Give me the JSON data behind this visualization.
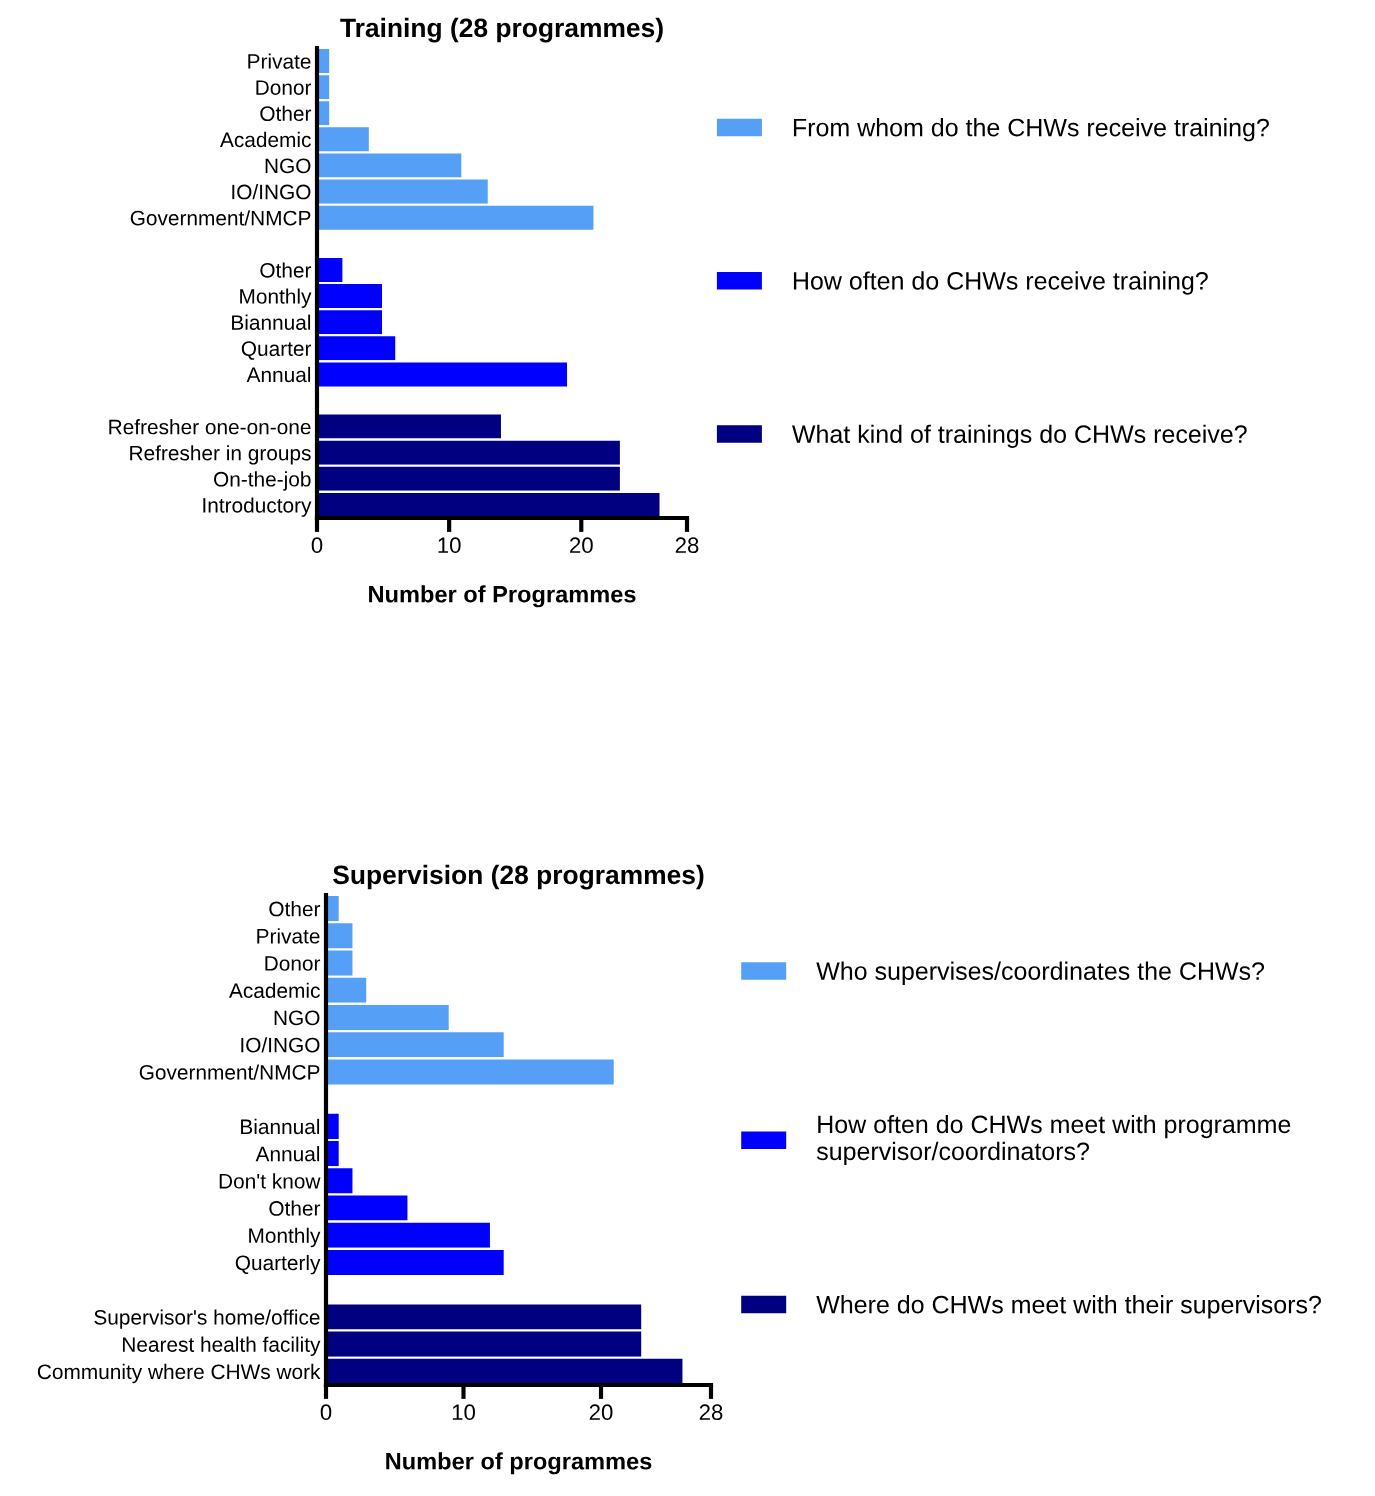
{
  "chart_data": [
    {
      "type": "bar",
      "orientation": "horizontal",
      "title": "Training (28 programmes)",
      "xlabel": "Number of Programmes",
      "categories": [
        "Private",
        "Donor",
        "Other",
        "Academic",
        "NGO",
        "IO/INGO",
        "Government/NMCP",
        null,
        "Other",
        "Monthly",
        "Biannual",
        "Quarter",
        "Annual",
        null,
        "Refresher one-on-one",
        "Refresher in groups",
        "On-the-job",
        "Introductory"
      ],
      "series": [
        {
          "name": "From whom do the CHWs receive training?",
          "color": "#559ff7",
          "values": [
            1,
            1,
            1,
            4,
            11,
            13,
            21,
            null,
            null,
            null,
            null,
            null,
            null,
            null,
            null,
            null,
            null,
            null
          ]
        },
        {
          "name": "How often do CHWs receive training?",
          "color": "#0000ff",
          "values": [
            null,
            null,
            null,
            null,
            null,
            null,
            null,
            null,
            2,
            5,
            5,
            6,
            19,
            null,
            null,
            null,
            null,
            null
          ]
        },
        {
          "name": "What kind of trainings do CHWs receive?",
          "color": "#000080",
          "values": [
            null,
            null,
            null,
            null,
            null,
            null,
            null,
            null,
            null,
            null,
            null,
            null,
            null,
            null,
            14,
            23,
            23,
            26
          ]
        }
      ],
      "xlim": [
        0,
        28
      ],
      "xticks": [
        0,
        10,
        20,
        28
      ],
      "grid": false,
      "legend": "right"
    },
    {
      "type": "bar",
      "orientation": "horizontal",
      "title": "Supervision (28 programmes)",
      "xlabel": "Number of programmes",
      "categories": [
        "Other",
        "Private",
        "Donor",
        "Academic",
        "NGO",
        "IO/INGO",
        "Government/NMCP",
        null,
        "Biannual",
        "Annual",
        "Don't know",
        "Other",
        "Monthly",
        "Quarterly",
        null,
        "Supervisor's home/office",
        "Nearest health facility",
        "Community where CHWs work"
      ],
      "series": [
        {
          "name": "Who supervises/coordinates the CHWs?",
          "color": "#559ff7",
          "values": [
            1,
            2,
            2,
            3,
            9,
            13,
            21,
            null,
            null,
            null,
            null,
            null,
            null,
            null,
            null,
            null,
            null,
            null
          ]
        },
        {
          "name": "How often do CHWs meet with programme\nsupervisor/coordinators?",
          "color": "#0000ff",
          "values": [
            null,
            null,
            null,
            null,
            null,
            null,
            null,
            null,
            1,
            1,
            2,
            6,
            12,
            13,
            null,
            null,
            null,
            null
          ]
        },
        {
          "name": "Where do CHWs meet with their supervisors?",
          "color": "#000080",
          "values": [
            null,
            null,
            null,
            null,
            null,
            null,
            null,
            null,
            null,
            null,
            null,
            null,
            null,
            null,
            null,
            23,
            23,
            26
          ]
        }
      ],
      "xlim": [
        0,
        28
      ],
      "xticks": [
        0,
        10,
        20,
        28
      ],
      "grid": false,
      "legend": "right"
    }
  ]
}
